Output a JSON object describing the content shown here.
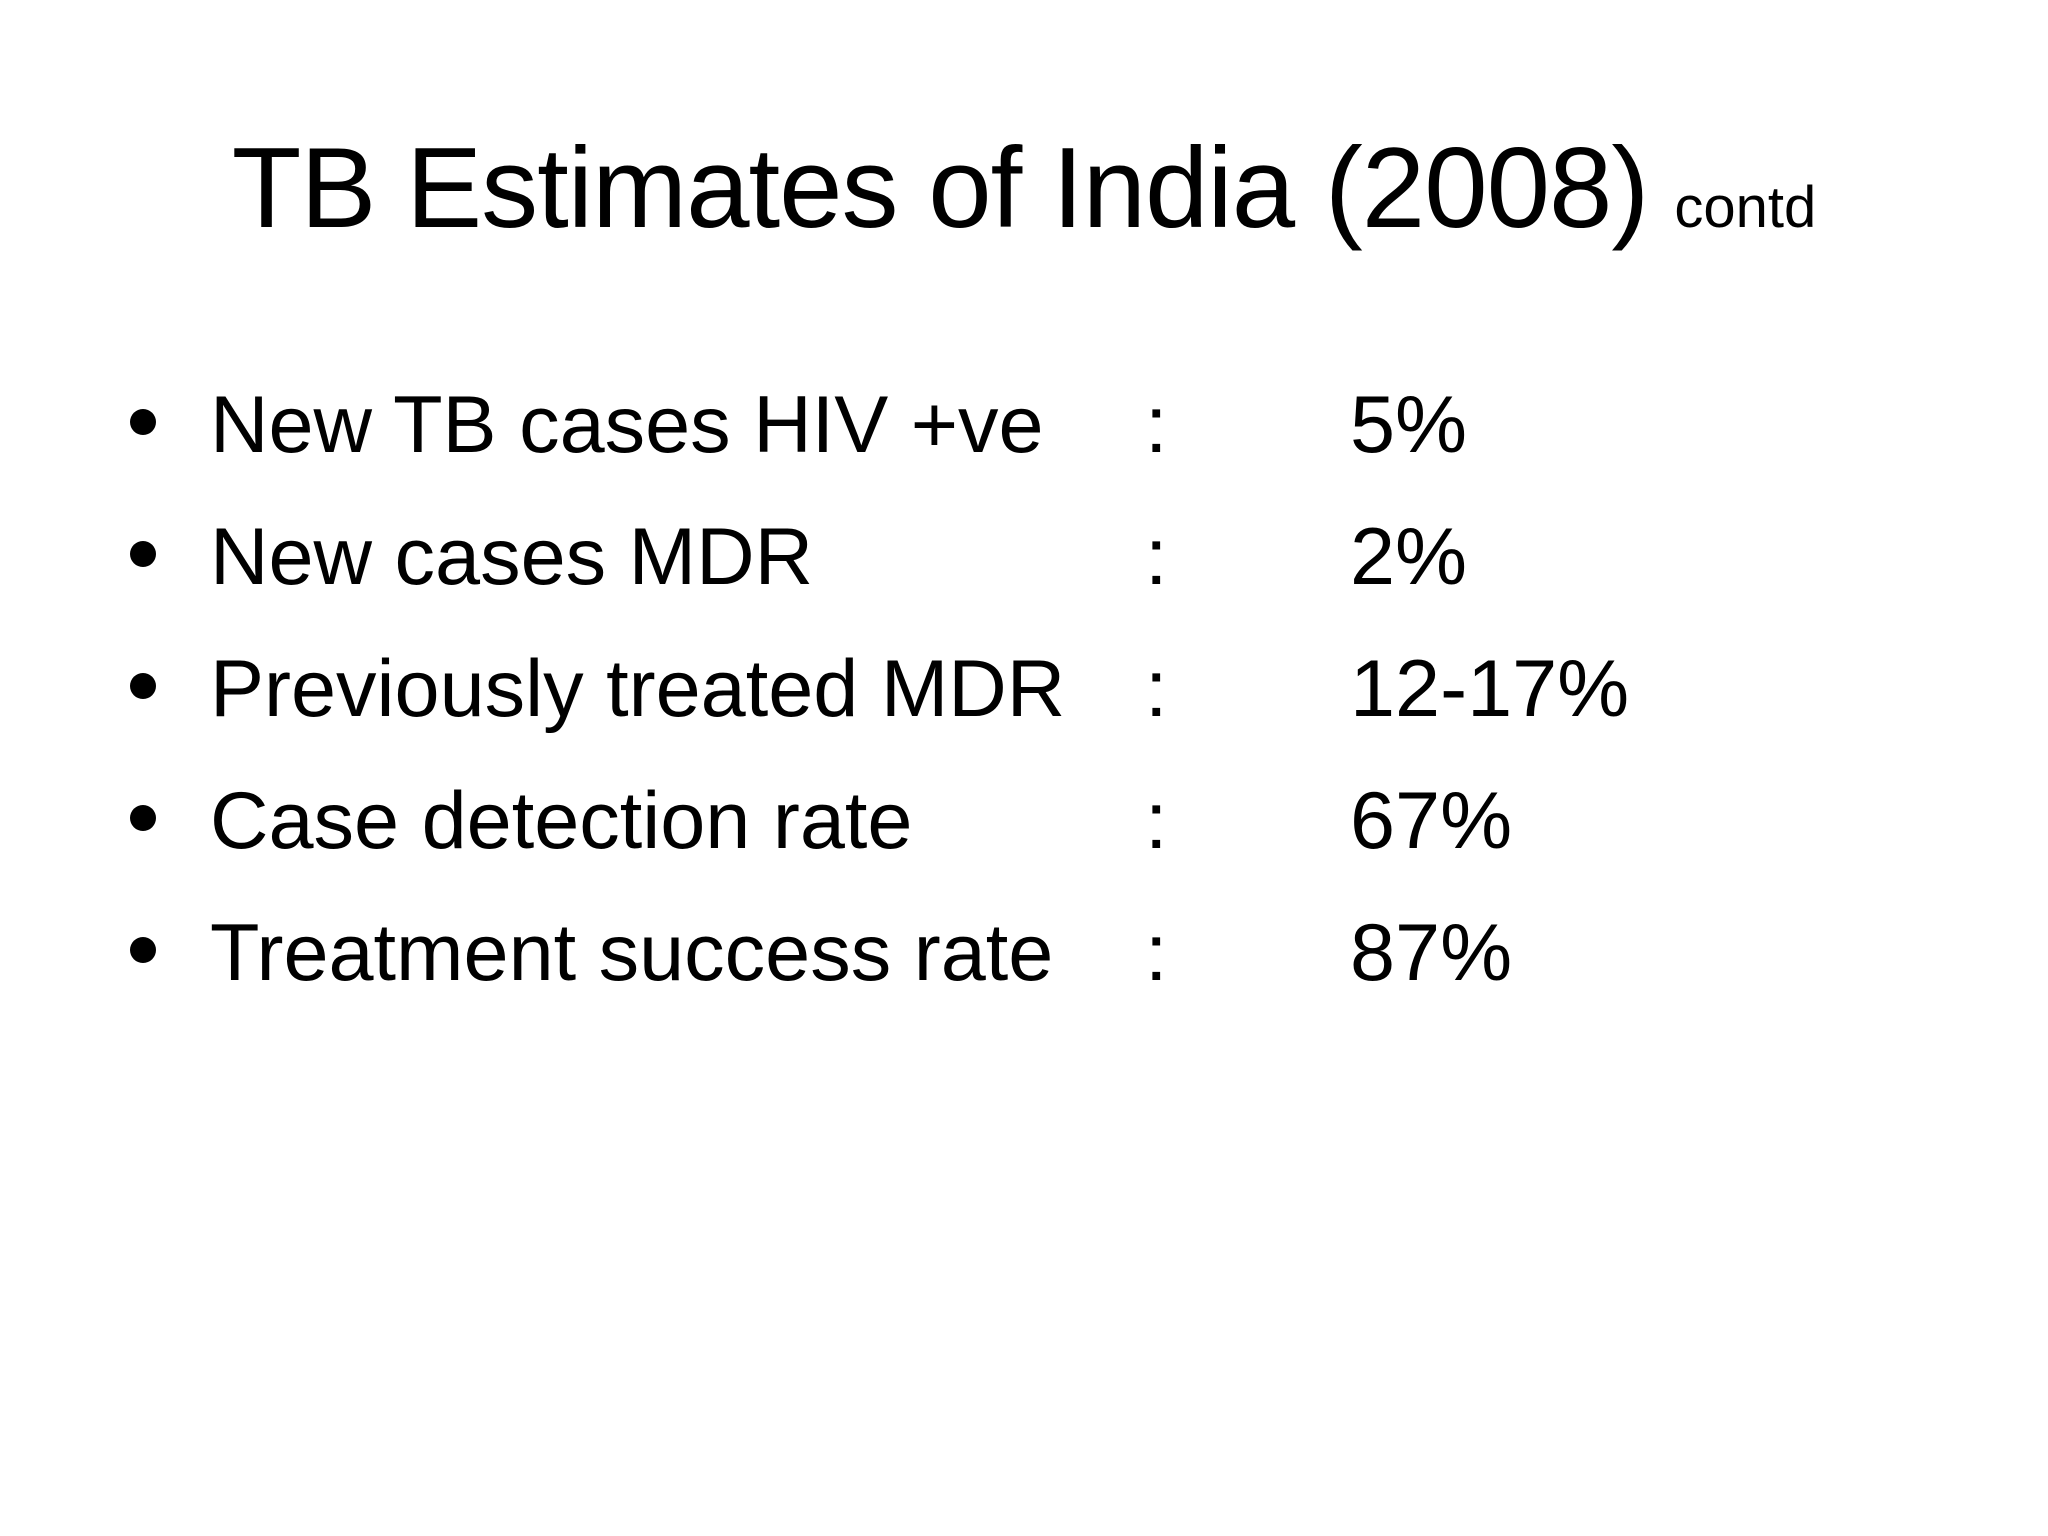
{
  "slide": {
    "title": "TB Estimates of India (2008)",
    "title_suffix": "contd",
    "bullets": [
      {
        "label": "New TB cases HIV +ve",
        "separator": ":",
        "value": "5%"
      },
      {
        "label": "New cases MDR",
        "separator": ":",
        "value": "2%"
      },
      {
        "label": "Previously treated MDR",
        "separator": ":",
        "value": "12-17%"
      },
      {
        "label": "Case detection rate",
        "separator": ":",
        "value": "67%"
      },
      {
        "label": "Treatment success rate",
        "separator": ":",
        "value": "87%"
      }
    ],
    "colors": {
      "background": "#ffffff",
      "text": "#000000"
    }
  }
}
